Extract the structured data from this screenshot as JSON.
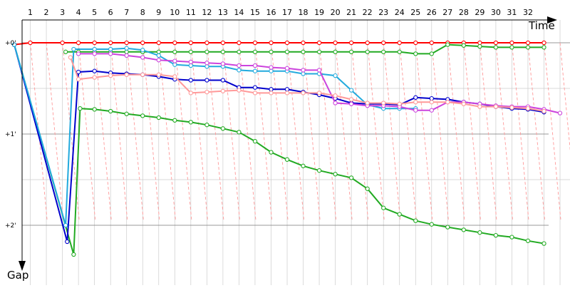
{
  "chart_data": {
    "type": "line",
    "title": "",
    "xlabel": "Time",
    "ylabel": "Gap",
    "x_ticks": [
      "1",
      "2",
      "3",
      "4",
      "5",
      "6",
      "7",
      "8",
      "9",
      "10",
      "11",
      "12",
      "13",
      "14",
      "15",
      "16",
      "17",
      "18",
      "19",
      "20",
      "21",
      "22",
      "23",
      "24",
      "25",
      "26",
      "27",
      "28",
      "29",
      "30",
      "31",
      "32"
    ],
    "y_ticks": [
      "+0'",
      "+1'",
      "+2'"
    ],
    "y_tick_values": [
      0,
      1,
      2
    ],
    "xlim": [
      0,
      32.8
    ],
    "ylim": [
      0,
      2.2
    ],
    "y_axis_direction": "down",
    "grid": true,
    "legend": "none",
    "series": [
      {
        "color": "#ff0000",
        "points": [
          [
            0,
            0.02
          ],
          [
            1,
            0
          ],
          [
            3,
            0
          ],
          [
            4,
            0
          ],
          [
            5,
            0
          ],
          [
            6,
            0
          ],
          [
            7,
            0
          ],
          [
            8,
            0
          ],
          [
            9,
            0
          ],
          [
            10,
            0
          ],
          [
            11,
            0
          ],
          [
            12,
            0
          ],
          [
            13,
            0
          ],
          [
            14,
            0
          ],
          [
            15,
            0
          ],
          [
            16,
            0
          ],
          [
            17,
            0
          ],
          [
            18,
            0
          ],
          [
            19,
            0
          ],
          [
            20,
            0
          ],
          [
            21,
            0
          ],
          [
            22,
            0
          ],
          [
            23,
            0
          ],
          [
            24,
            0
          ],
          [
            25,
            0
          ],
          [
            26,
            0
          ],
          [
            27,
            0
          ],
          [
            28,
            0
          ],
          [
            29,
            0
          ],
          [
            30,
            0
          ],
          [
            31,
            0
          ],
          [
            32,
            0
          ],
          [
            33,
            0
          ]
        ]
      },
      {
        "color": "#22aa22",
        "points": [
          [
            0,
            0.02
          ],
          [
            3.7,
            2.32
          ],
          [
            4.1,
            0.72
          ],
          [
            5,
            0.73
          ],
          [
            6,
            0.75
          ],
          [
            7,
            0.78
          ],
          [
            8,
            0.8
          ],
          [
            9,
            0.82
          ],
          [
            10,
            0.85
          ],
          [
            11,
            0.87
          ],
          [
            12,
            0.9
          ],
          [
            13,
            0.94
          ],
          [
            14,
            0.98
          ],
          [
            15,
            1.08
          ],
          [
            16,
            1.2
          ],
          [
            17,
            1.28
          ],
          [
            18,
            1.35
          ],
          [
            19,
            1.4
          ],
          [
            20,
            1.44
          ],
          [
            21,
            1.48
          ],
          [
            22,
            1.6
          ],
          [
            23,
            1.81
          ],
          [
            24,
            1.88
          ],
          [
            25,
            1.95
          ],
          [
            26,
            1.99
          ],
          [
            27,
            2.02
          ],
          [
            28,
            2.05
          ],
          [
            29,
            2.08
          ],
          [
            30,
            2.11
          ],
          [
            31,
            2.13
          ],
          [
            32,
            2.17
          ],
          [
            33,
            2.2
          ]
        ]
      },
      {
        "color": "#22aa22",
        "points": [
          [
            3.2,
            0.1
          ],
          [
            4,
            0.1
          ],
          [
            5,
            0.1
          ],
          [
            6,
            0.1
          ],
          [
            7,
            0.1
          ],
          [
            8,
            0.1
          ],
          [
            9,
            0.1
          ],
          [
            10,
            0.1
          ],
          [
            11,
            0.1
          ],
          [
            12,
            0.1
          ],
          [
            13,
            0.1
          ],
          [
            14,
            0.1
          ],
          [
            15,
            0.1
          ],
          [
            16,
            0.1
          ],
          [
            17,
            0.1
          ],
          [
            18,
            0.1
          ],
          [
            19,
            0.1
          ],
          [
            20,
            0.1
          ],
          [
            21,
            0.1
          ],
          [
            22,
            0.1
          ],
          [
            23,
            0.1
          ],
          [
            24,
            0.1
          ],
          [
            25,
            0.12
          ],
          [
            26,
            0.12
          ],
          [
            27,
            0.02
          ],
          [
            28,
            0.03
          ],
          [
            29,
            0.04
          ],
          [
            30,
            0.05
          ],
          [
            31,
            0.05
          ],
          [
            32,
            0.05
          ],
          [
            33,
            0.05
          ]
        ]
      },
      {
        "color": "#0000cc",
        "points": [
          [
            0,
            0.02
          ],
          [
            3.3,
            2.18
          ],
          [
            4,
            0.32
          ],
          [
            5,
            0.31
          ],
          [
            6,
            0.33
          ],
          [
            7,
            0.34
          ],
          [
            8,
            0.35
          ],
          [
            9,
            0.37
          ],
          [
            10,
            0.4
          ],
          [
            11,
            0.41
          ],
          [
            12,
            0.41
          ],
          [
            13,
            0.41
          ],
          [
            14,
            0.49
          ],
          [
            15,
            0.49
          ],
          [
            16,
            0.51
          ],
          [
            17,
            0.51
          ],
          [
            18,
            0.54
          ],
          [
            19,
            0.57
          ],
          [
            20,
            0.61
          ],
          [
            21,
            0.66
          ],
          [
            22,
            0.67
          ],
          [
            23,
            0.67
          ],
          [
            24,
            0.68
          ],
          [
            25,
            0.6
          ],
          [
            26,
            0.61
          ],
          [
            27,
            0.62
          ],
          [
            28,
            0.65
          ],
          [
            29,
            0.67
          ],
          [
            30,
            0.7
          ],
          [
            31,
            0.72
          ],
          [
            32,
            0.73
          ],
          [
            33,
            0.76
          ]
        ]
      },
      {
        "color": "#22aadd",
        "points": [
          [
            0,
            0.02
          ],
          [
            3.2,
            2.0
          ],
          [
            3.7,
            0.07
          ],
          [
            5,
            0.07
          ],
          [
            6,
            0.07
          ],
          [
            7,
            0.06
          ],
          [
            8,
            0.08
          ],
          [
            9,
            0.14
          ],
          [
            10,
            0.24
          ],
          [
            11,
            0.25
          ],
          [
            12,
            0.26
          ],
          [
            13,
            0.26
          ],
          [
            14,
            0.3
          ],
          [
            15,
            0.31
          ],
          [
            16,
            0.31
          ],
          [
            17,
            0.31
          ],
          [
            18,
            0.34
          ],
          [
            19,
            0.34
          ],
          [
            20,
            0.36
          ],
          [
            21,
            0.52
          ],
          [
            22,
            0.68
          ],
          [
            23,
            0.72
          ],
          [
            24,
            0.72
          ],
          [
            25,
            0.72
          ]
        ]
      },
      {
        "color": "#cc44dd",
        "points": [
          [
            4,
            0.12
          ],
          [
            5,
            0.12
          ],
          [
            6,
            0.12
          ],
          [
            7,
            0.14
          ],
          [
            8,
            0.16
          ],
          [
            9,
            0.19
          ],
          [
            10,
            0.2
          ],
          [
            11,
            0.21
          ],
          [
            12,
            0.22
          ],
          [
            13,
            0.23
          ],
          [
            14,
            0.25
          ],
          [
            15,
            0.25
          ],
          [
            16,
            0.27
          ],
          [
            17,
            0.28
          ],
          [
            18,
            0.3
          ],
          [
            19,
            0.3
          ],
          [
            20,
            0.66
          ],
          [
            21,
            0.67
          ],
          [
            22,
            0.69
          ],
          [
            23,
            0.69
          ],
          [
            24,
            0.7
          ],
          [
            25,
            0.74
          ],
          [
            26,
            0.74
          ],
          [
            27,
            0.65
          ],
          [
            28,
            0.65
          ],
          [
            29,
            0.67
          ],
          [
            30,
            0.69
          ],
          [
            31,
            0.7
          ],
          [
            32,
            0.7
          ],
          [
            33,
            0.73
          ],
          [
            34,
            0.77
          ]
        ]
      },
      {
        "color": "#ff9999",
        "points": [
          [
            3.5,
            0.16
          ],
          [
            4,
            0.4
          ],
          [
            5,
            0.38
          ],
          [
            6,
            0.36
          ],
          [
            7,
            0.35
          ],
          [
            8,
            0.35
          ],
          [
            9,
            0.35
          ],
          [
            10,
            0.37
          ],
          [
            11,
            0.55
          ],
          [
            12,
            0.54
          ],
          [
            13,
            0.53
          ],
          [
            14,
            0.52
          ],
          [
            15,
            0.55
          ],
          [
            16,
            0.55
          ],
          [
            17,
            0.55
          ],
          [
            18,
            0.55
          ],
          [
            19,
            0.55
          ],
          [
            20,
            0.58
          ],
          [
            21,
            0.62
          ],
          [
            22,
            0.66
          ],
          [
            23,
            0.66
          ],
          [
            24,
            0.67
          ],
          [
            25,
            0.65
          ],
          [
            26,
            0.65
          ],
          [
            27,
            0.65
          ],
          [
            28,
            0.67
          ],
          [
            29,
            0.7
          ],
          [
            30,
            0.7
          ],
          [
            31,
            0.71
          ],
          [
            32,
            0.72
          ],
          [
            33,
            0.75
          ]
        ]
      }
    ]
  },
  "colors": {
    "slant_lines": "#ff9999",
    "gridlines": "#cccccc",
    "axis": "#000000"
  }
}
